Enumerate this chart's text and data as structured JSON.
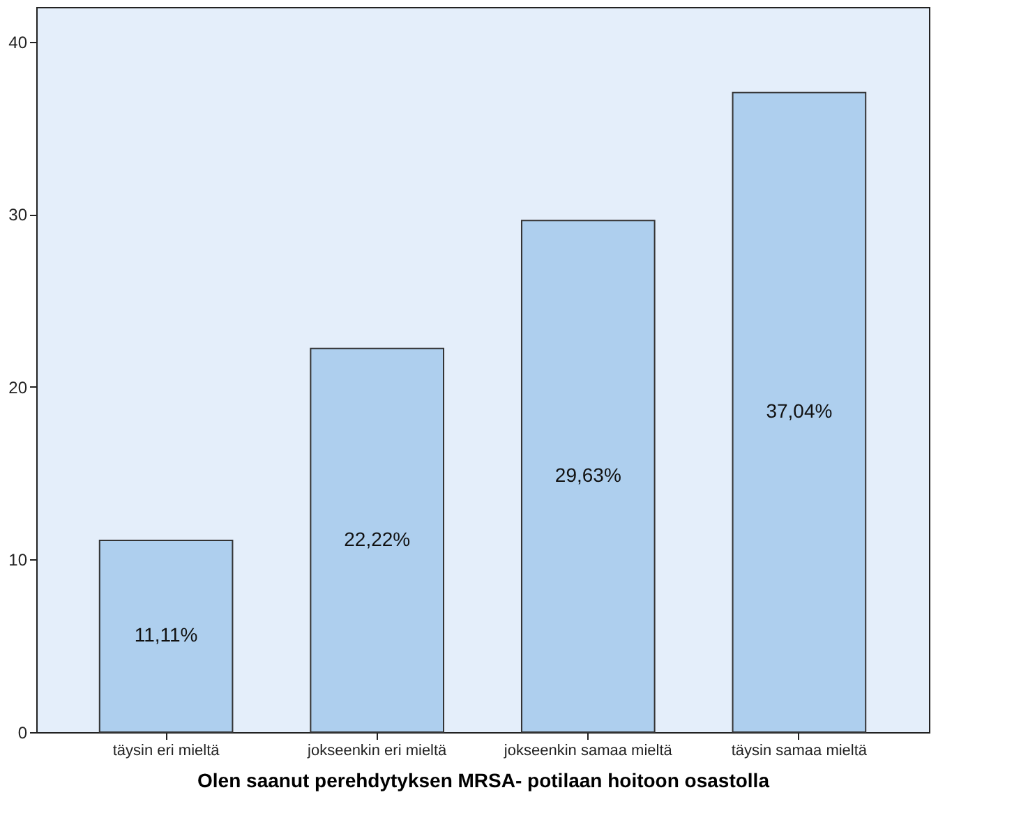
{
  "chart_data": {
    "type": "bar",
    "xlabel": "Olen saanut perehdytyksen MRSA- potilaan hoitoon osastolla",
    "categories": [
      "täysin eri mieltä",
      "jokseenkin eri mieltä",
      "jokseenkin samaa mieltä",
      "täysin samaa mieltä"
    ],
    "values": [
      11.11,
      22.22,
      29.63,
      37.04
    ],
    "value_labels": [
      "11,11%",
      "22,22%",
      "29,63%",
      "37,04%"
    ],
    "color": "#aecfee",
    "ylim": [
      0,
      42
    ],
    "yticks": [
      0,
      10,
      20,
      30,
      40
    ],
    "grid": false
  }
}
